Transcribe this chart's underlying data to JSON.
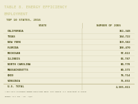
{
  "title_line1": "TABLE 8. ENERGY EFFICIENCY",
  "title_line2": "EMPLOYMENT",
  "subtitle": "TOP 10 STATES, 2016",
  "col1_header": "STATE",
  "col2_header": "NUMBER OF JOBS",
  "rows": [
    [
      "CALIFORNIA",
      "361,348"
    ],
    [
      "TEXAS",
      "144,722"
    ],
    [
      "NEW YORK",
      "159,582"
    ],
    [
      "FLORIDA",
      "108,470"
    ],
    [
      "MICHIGAN",
      "97,813"
    ],
    [
      "ILLINOIS",
      "83,787"
    ],
    [
      "NORTH CAROLINA",
      "80,770"
    ],
    [
      "MASSACHUSETTS",
      "80,373"
    ],
    [
      "OHIO",
      "78,714"
    ],
    [
      "VIRGINIA",
      "75,853"
    ]
  ],
  "total_label": "U.S. TOTAL",
  "total_value": "2,385,811",
  "footnote1": "* NOT TOTAL CALIFORNIA BORDER RENOVATION INDEX. DATA SOURCE: U.S. Department of Energy",
  "footnote2": "REPORT: CO 1 100 - VOL - 0/0A",
  "header_bg": "#5a5a1e",
  "header_text": "#d8d4a0",
  "col_header_bg": "#d8d4a8",
  "col_header_text": "#5a5a1e",
  "row_highlight_bg": "#c2d4e2",
  "row_alt_bg": "#eeeacc",
  "row_norm_bg": "#f5f2e0",
  "row_total_bg": "#e0dcc0",
  "row_text": "#4a4a18",
  "subtitle_color": "#6a6a28",
  "border_color": "#c0ba90",
  "fig_bg": "#f0edd8",
  "col_split": 0.6
}
